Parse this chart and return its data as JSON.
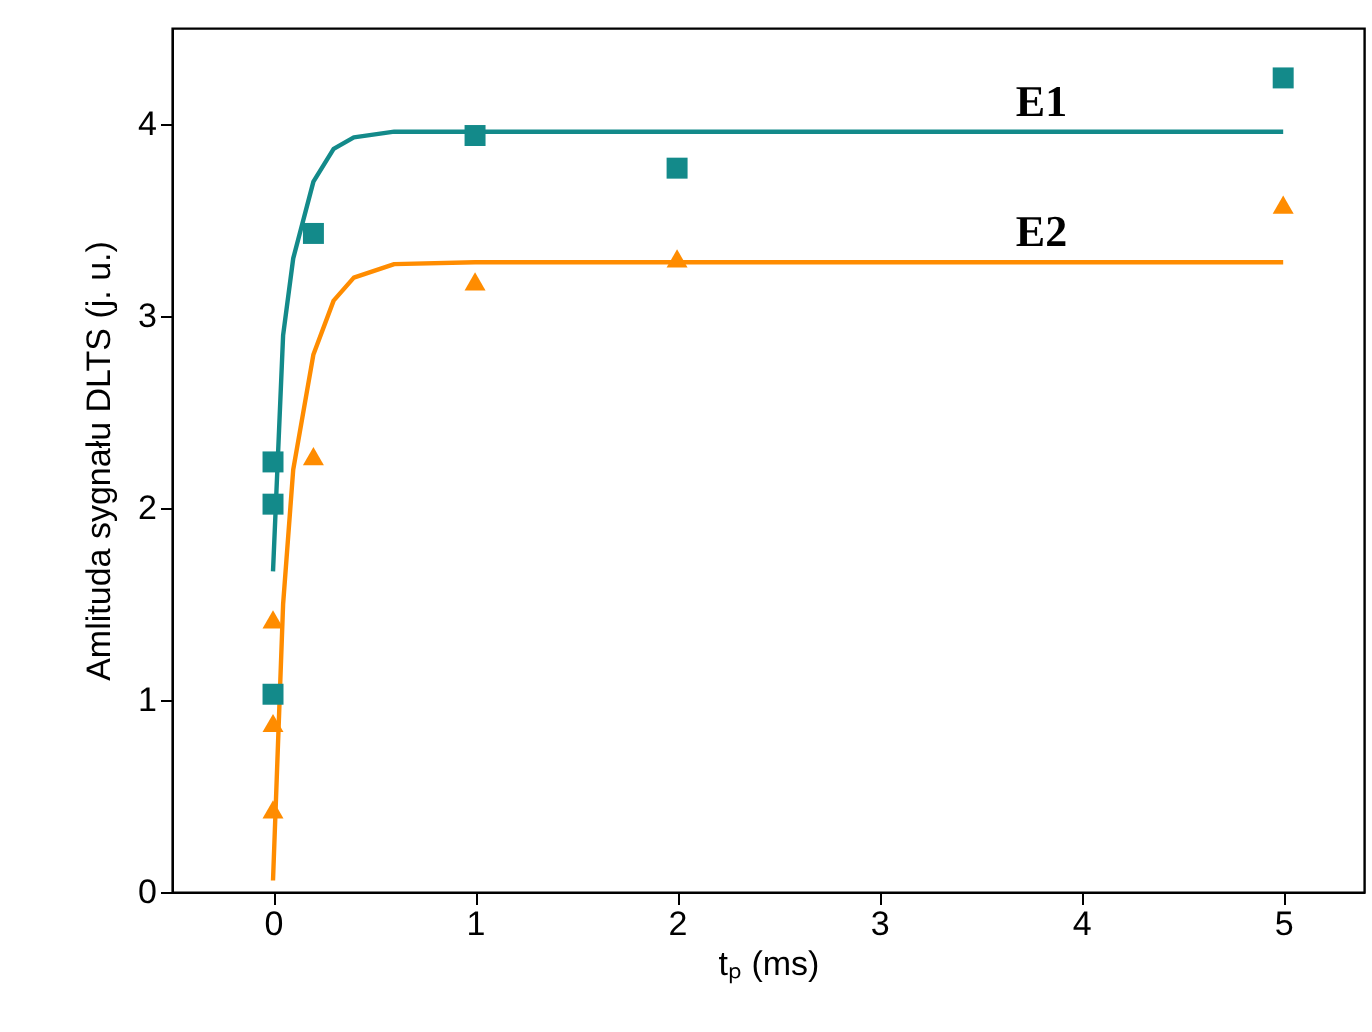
{
  "chart_data": {
    "type": "scatter",
    "xlabel": "tₚ (ms)",
    "ylabel": "Amlituda sygnału DLTS (j. u.)",
    "xlim": [
      -0.5,
      5.4
    ],
    "ylim": [
      0,
      4.5
    ],
    "xticks": [
      0,
      1,
      2,
      3,
      4,
      5
    ],
    "yticks": [
      0,
      1,
      2,
      3,
      4
    ],
    "grid": false,
    "series": [
      {
        "type": "line",
        "name": "E1",
        "color": "#138a8a",
        "marker": "none",
        "x": [
          0,
          0.05,
          0.1,
          0.2,
          0.3,
          0.4,
          0.6,
          1,
          2,
          5
        ],
        "values": [
          1.67,
          2.9,
          3.3,
          3.7,
          3.87,
          3.93,
          3.96,
          3.96,
          3.96,
          3.96
        ]
      },
      {
        "type": "line",
        "name": "E2",
        "color": "#ff8c00",
        "marker": "none",
        "x": [
          0,
          0.05,
          0.1,
          0.2,
          0.3,
          0.4,
          0.6,
          1,
          2,
          5
        ],
        "values": [
          0.06,
          1.5,
          2.2,
          2.8,
          3.08,
          3.2,
          3.27,
          3.28,
          3.28,
          3.28
        ]
      },
      {
        "color": "#138a8a",
        "marker": "square",
        "x": [
          0,
          0,
          0,
          0.2,
          1,
          2,
          5
        ],
        "values": [
          1.03,
          2.02,
          2.24,
          3.43,
          3.94,
          3.77,
          4.24
        ]
      },
      {
        "color": "#ff8c00",
        "marker": "triangle",
        "x": [
          0,
          0,
          0,
          0.2,
          1,
          2,
          5
        ],
        "values": [
          0.43,
          0.88,
          1.42,
          2.27,
          3.18,
          3.3,
          3.58
        ]
      }
    ]
  }
}
